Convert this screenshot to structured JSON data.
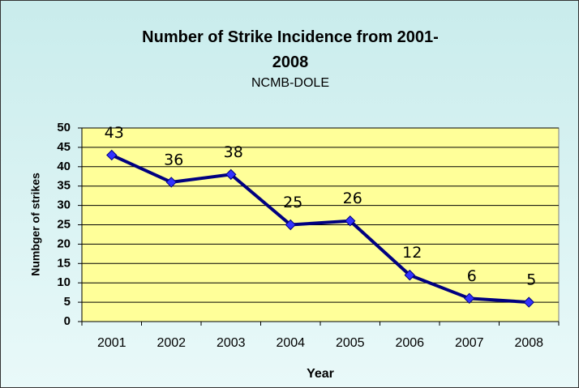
{
  "chart_data": {
    "type": "line",
    "title": "Number of Strike Incidence from 2001-2008",
    "subtitle": "NCMB-DOLE",
    "x_label": "Year",
    "y_label": "Numbger of strikes",
    "categories": [
      "2001",
      "2002",
      "2003",
      "2004",
      "2005",
      "2006",
      "2007",
      "2008"
    ],
    "values": [
      43,
      36,
      38,
      25,
      26,
      12,
      6,
      5
    ],
    "color": "#000080",
    "marker_color": "#3333ff",
    "ylim": [
      0,
      50
    ],
    "yticks": [
      0,
      5,
      10,
      15,
      20,
      25,
      30,
      35,
      40,
      45,
      50
    ],
    "grid": true
  }
}
